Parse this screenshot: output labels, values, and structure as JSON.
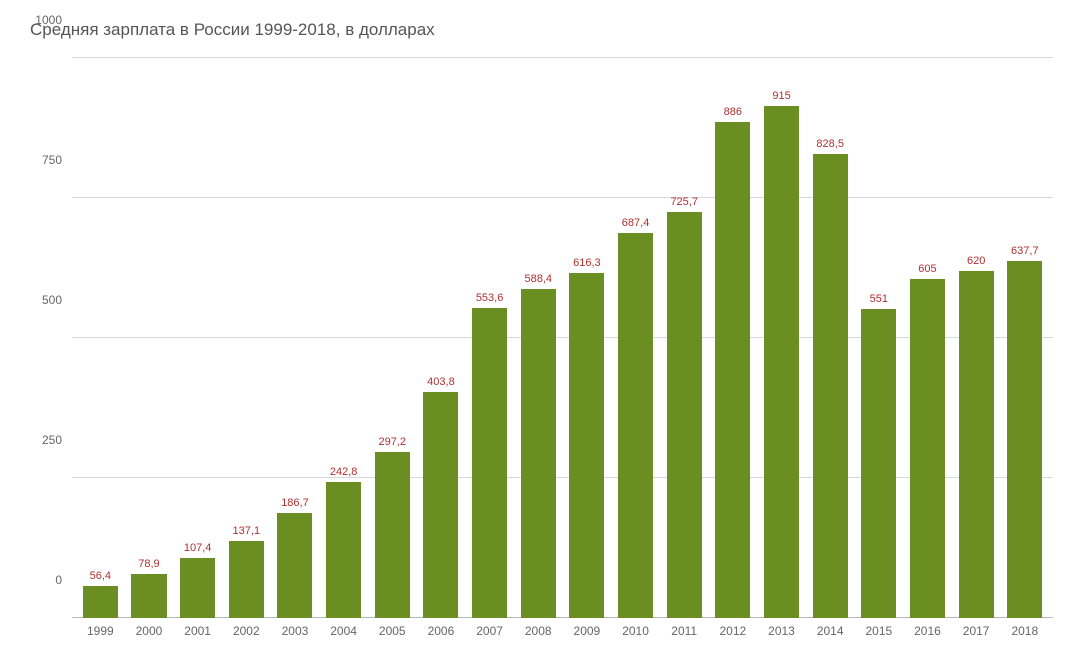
{
  "chart": {
    "type": "bar",
    "title": "Средняя зарплата в России 1999-2018, в долларах",
    "title_fontsize": 17,
    "title_color": "#555555",
    "categories": [
      "1999",
      "2000",
      "2001",
      "2002",
      "2003",
      "2004",
      "2005",
      "2006",
      "2007",
      "2008",
      "2009",
      "2010",
      "2011",
      "2012",
      "2013",
      "2014",
      "2015",
      "2016",
      "2017",
      "2018"
    ],
    "values": [
      56.4,
      78.9,
      107.4,
      137.1,
      186.7,
      242.8,
      297.2,
      403.8,
      553.6,
      588.4,
      616.3,
      687.4,
      725.7,
      886,
      915,
      828.5,
      551,
      605,
      620,
      637.7
    ],
    "value_labels": [
      "56,4",
      "78,9",
      "107,4",
      "137,1",
      "186,7",
      "242,8",
      "297,2",
      "403,8",
      "553,6",
      "588,4",
      "616,3",
      "687,4",
      "725,7",
      "886",
      "915",
      "828,5",
      "551",
      "605",
      "620",
      "637,7"
    ],
    "bar_color": "#6b8e23",
    "ylim": [
      0,
      1000
    ],
    "yticks": [
      0,
      250,
      500,
      750,
      1000
    ],
    "ytick_labels": [
      "0",
      "250",
      "500",
      "750",
      "1000"
    ],
    "grid_color": "#d8d8d8",
    "baseline_color": "#b8b8b8",
    "background_color": "#ffffff",
    "axis_label_color": "#666666",
    "value_label_color": "#b03030",
    "value_label_fontsize": 11,
    "axis_label_fontsize": 12,
    "bar_width": 0.72
  }
}
